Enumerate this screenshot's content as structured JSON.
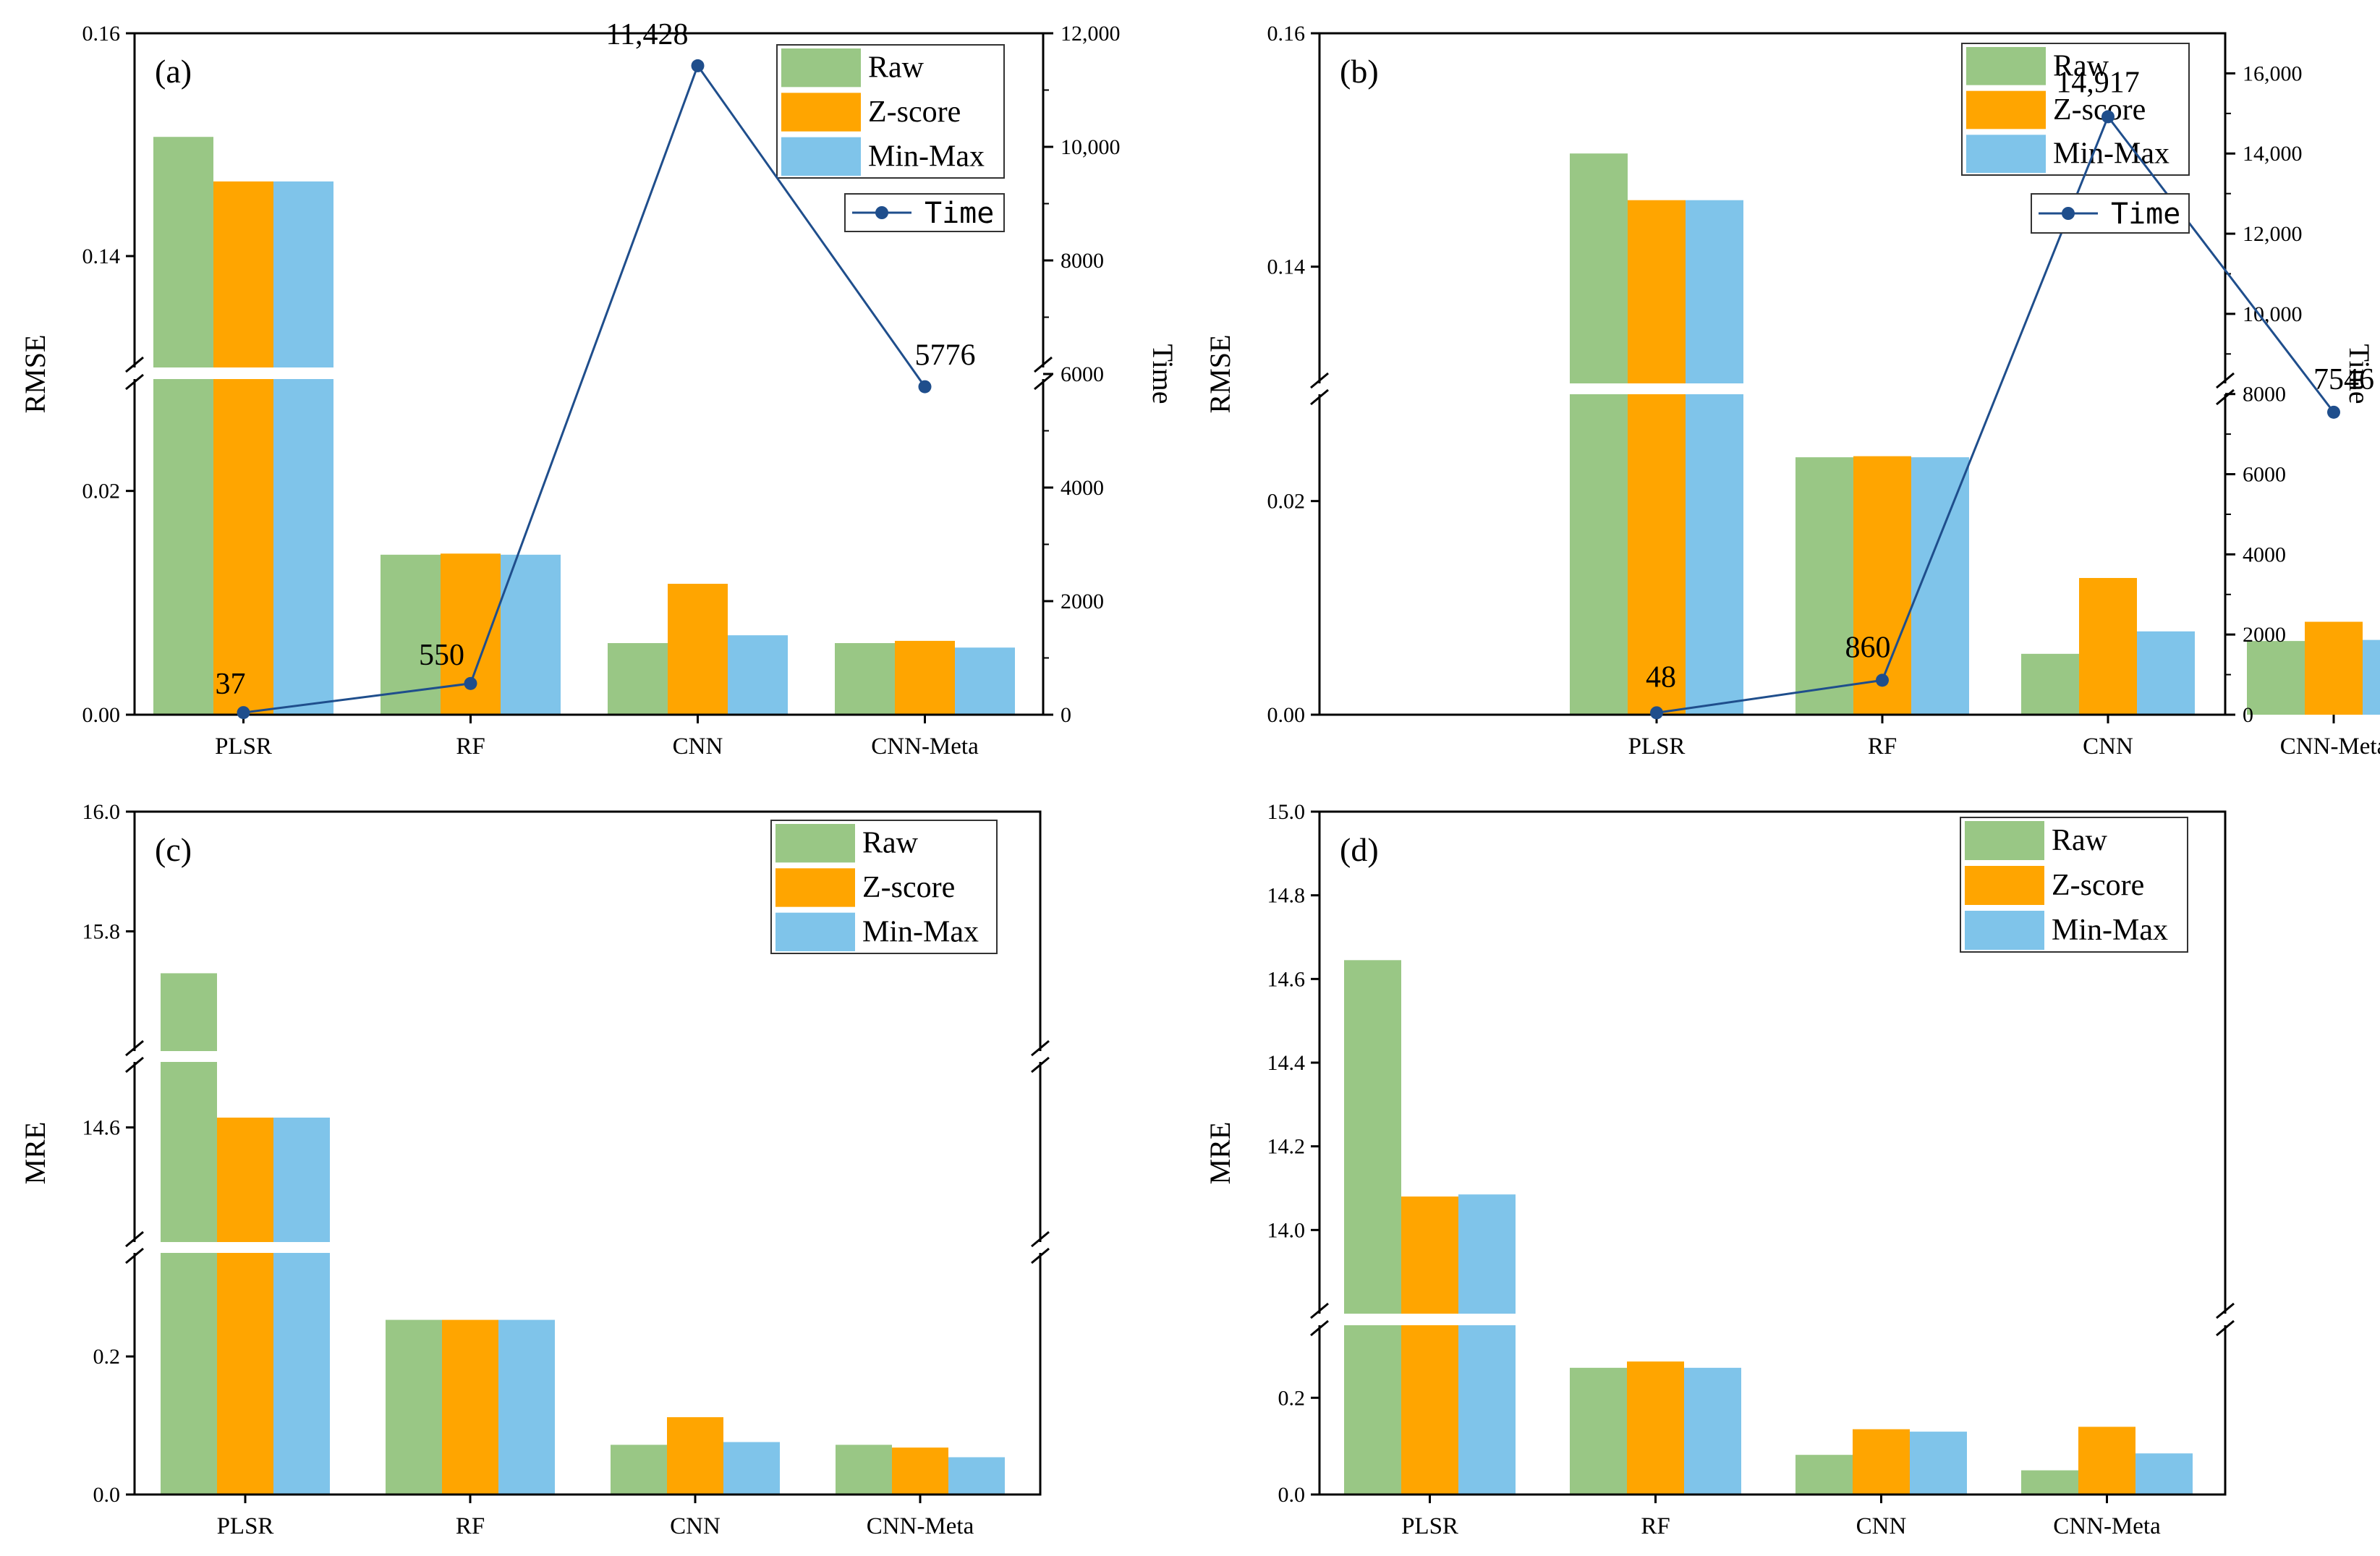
{
  "colors": {
    "raw": "#99c785",
    "zscore": "#ffa500",
    "minmax": "#7fc4ea",
    "time": "#1f4e8c",
    "axis": "#000000"
  },
  "chart_data": [
    {
      "id": "a",
      "panel_label": "(a)",
      "type": "bar",
      "ylabel": "RMSE",
      "y2label": "Time",
      "categories": [
        "PLSR",
        "RF",
        "CNN",
        "CNN-Meta"
      ],
      "series": [
        {
          "name": "Raw",
          "values": [
            0.1507,
            0.0143,
            0.0064,
            0.0064
          ]
        },
        {
          "name": "Z-score",
          "values": [
            0.1467,
            0.0144,
            0.0117,
            0.0066
          ]
        },
        {
          "name": "Min-Max",
          "values": [
            0.1467,
            0.0143,
            0.0071,
            0.006
          ]
        }
      ],
      "y_break": {
        "lower_range": [
          0,
          0.03
        ],
        "upper_range": [
          0.13,
          0.16
        ]
      },
      "yticks": [
        {
          "v": 0.0,
          "label": "0.00"
        },
        {
          "v": 0.02,
          "label": "0.02"
        },
        {
          "v": 0.14,
          "label": "0.14"
        },
        {
          "v": 0.16,
          "label": "0.16"
        }
      ],
      "time": {
        "name": "Time",
        "values": [
          37,
          550,
          11428,
          5776
        ],
        "labels": [
          "37",
          "550",
          "11,428",
          "5776"
        ],
        "y2_range": [
          0,
          12000
        ],
        "y2ticks": [
          {
            "v": 0,
            "label": "0"
          },
          {
            "v": 2000,
            "label": "2000"
          },
          {
            "v": 4000,
            "label": "4000"
          },
          {
            "v": 6000,
            "label": "6000"
          },
          {
            "v": 8000,
            "label": "8000"
          },
          {
            "v": 10000,
            "label": "10,000"
          },
          {
            "v": 12000,
            "label": "12,000"
          }
        ]
      },
      "legend": [
        "Raw",
        "Z-score",
        "Min-Max"
      ],
      "legend_position": "top-right"
    },
    {
      "id": "b",
      "panel_label": "(b)",
      "type": "bar",
      "ylabel": "RMSE",
      "y2label": "Time",
      "categories": [
        "PLSR",
        "RF",
        "CNN",
        "CNN-Meta"
      ],
      "series": [
        {
          "name": "Raw",
          "values": [
            0.1497,
            0.0241,
            0.0057,
            0.0069
          ]
        },
        {
          "name": "Z-score",
          "values": [
            0.1457,
            0.0242,
            0.0128,
            0.0087
          ]
        },
        {
          "name": "Min-Max",
          "values": [
            0.1457,
            0.0241,
            0.0078,
            0.007
          ]
        }
      ],
      "y_break": {
        "lower_range": [
          0,
          0.03
        ],
        "upper_range": [
          0.13,
          0.16
        ]
      },
      "yticks": [
        {
          "v": 0.0,
          "label": "0.00"
        },
        {
          "v": 0.02,
          "label": "0.02"
        },
        {
          "v": 0.14,
          "label": "0.14"
        },
        {
          "v": 0.16,
          "label": "0.16"
        }
      ],
      "time": {
        "name": "Time",
        "values": [
          48,
          860,
          14917,
          7546
        ],
        "labels": [
          "48",
          "860",
          "14,917",
          "7546"
        ],
        "y2_range": [
          0,
          17000
        ],
        "y2ticks": [
          {
            "v": 0,
            "label": "0"
          },
          {
            "v": 2000,
            "label": "2000"
          },
          {
            "v": 4000,
            "label": "4000"
          },
          {
            "v": 6000,
            "label": "6000"
          },
          {
            "v": 8000,
            "label": "8000"
          },
          {
            "v": 10000,
            "label": "10,000"
          },
          {
            "v": 12000,
            "label": "12,000"
          },
          {
            "v": 14000,
            "label": "14,000"
          },
          {
            "v": 16000,
            "label": "16,000"
          }
        ]
      },
      "legend": [
        "Raw",
        "Z-score",
        "Min-Max"
      ],
      "legend_position": "top-right"
    },
    {
      "id": "c",
      "panel_label": "(c)",
      "type": "bar",
      "ylabel": "MRE",
      "categories": [
        "PLSR",
        "RF",
        "CNN",
        "CNN-Meta"
      ],
      "series": [
        {
          "name": "Raw",
          "values": [
            15.73,
            0.253,
            0.072,
            0.072
          ]
        },
        {
          "name": "Z-score",
          "values": [
            14.63,
            0.253,
            0.112,
            0.068
          ]
        },
        {
          "name": "Min-Max",
          "values": [
            14.63,
            0.253,
            0.076,
            0.054
          ]
        }
      ],
      "y_break": {
        "lower_range": [
          0,
          0.35
        ],
        "middle_range": [
          14.25,
          14.8
        ],
        "upper_range": [
          15.6,
          16.0
        ]
      },
      "yticks": [
        {
          "v": 0.0,
          "label": "0.0"
        },
        {
          "v": 0.2,
          "label": "0.2"
        },
        {
          "v": 14.6,
          "label": "14.6"
        },
        {
          "v": 15.8,
          "label": "15.8"
        },
        {
          "v": 16.0,
          "label": "16.0"
        }
      ],
      "legend": [
        "Raw",
        "Z-score",
        "Min-Max"
      ],
      "legend_position": "top-right"
    },
    {
      "id": "d",
      "panel_label": "(d)",
      "type": "bar",
      "ylabel": "MRE",
      "categories": [
        "PLSR",
        "RF",
        "CNN",
        "CNN-Meta"
      ],
      "series": [
        {
          "name": "Raw",
          "values": [
            14.645,
            0.262,
            0.082,
            0.05
          ]
        },
        {
          "name": "Z-score",
          "values": [
            14.08,
            0.275,
            0.135,
            0.14
          ]
        },
        {
          "name": "Min-Max",
          "values": [
            14.085,
            0.262,
            0.13,
            0.085
          ]
        }
      ],
      "y_break": {
        "lower_range": [
          0,
          0.35
        ],
        "upper_range": [
          13.8,
          15.0
        ]
      },
      "yticks": [
        {
          "v": 0.0,
          "label": "0.0"
        },
        {
          "v": 0.2,
          "label": "0.2"
        },
        {
          "v": 14.0,
          "label": "14.0"
        },
        {
          "v": 14.2,
          "label": "14.2"
        },
        {
          "v": 14.4,
          "label": "14.4"
        },
        {
          "v": 14.6,
          "label": "14.6"
        },
        {
          "v": 14.8,
          "label": "14.8"
        },
        {
          "v": 15.0,
          "label": "15.0"
        }
      ],
      "legend": [
        "Raw",
        "Z-score",
        "Min-Max"
      ],
      "legend_position": "top-right"
    }
  ]
}
